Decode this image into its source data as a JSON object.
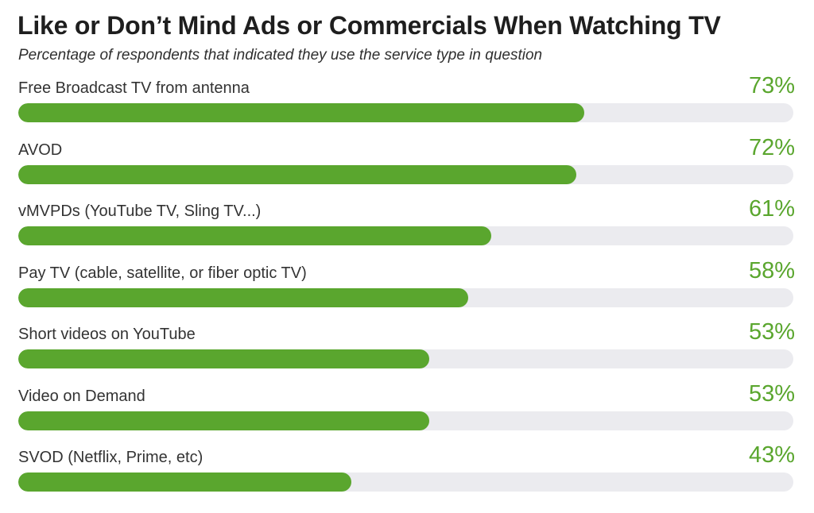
{
  "colors": {
    "bar_fill": "#5aa62e",
    "bar_track": "#ebebef",
    "percent_text": "#5aa62e"
  },
  "chart_data": {
    "type": "bar",
    "orientation": "horizontal",
    "title": "Like or Don’t Mind Ads or Commercials When Watching TV",
    "subtitle": "Percentage of respondents that indicated they use the service type in question",
    "xlim": [
      0,
      100
    ],
    "grid": false,
    "categories": [
      "Free Broadcast TV from antenna",
      "AVOD",
      "vMVPDs (YouTube TV, Sling TV...)",
      "Pay TV (cable, satellite, or fiber optic TV)",
      "Short videos on YouTube",
      "Video on Demand",
      "SVOD (Netflix, Prime, etc)"
    ],
    "values": [
      73,
      72,
      61,
      58,
      53,
      53,
      43
    ],
    "value_labels": [
      "73%",
      "72%",
      "61%",
      "58%",
      "53%",
      "53%",
      "43%"
    ]
  }
}
